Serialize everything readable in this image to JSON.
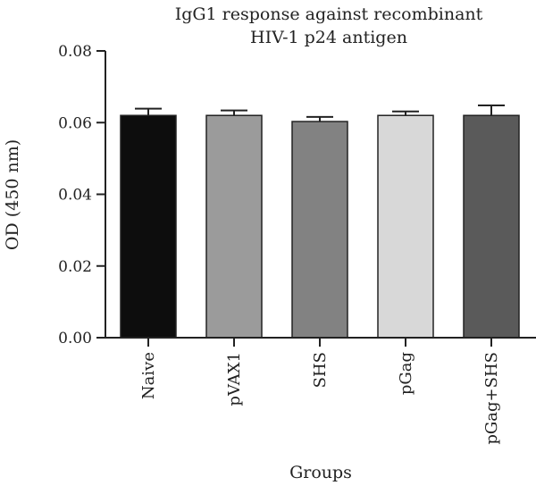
{
  "chart_data": {
    "type": "bar",
    "title_lines": [
      "IgG1 response against recombinant",
      "HIV-1 p24 antigen"
    ],
    "xlabel": "Groups",
    "ylabel": "OD (450 nm)",
    "categories": [
      "Naive",
      "pVAX1",
      "SHS",
      "pGag",
      "pGag+SHS"
    ],
    "values": [
      0.062,
      0.062,
      0.0603,
      0.062,
      0.062
    ],
    "error_upper": [
      0.0019,
      0.0014,
      0.0013,
      0.0011,
      0.0028
    ],
    "bar_colors": [
      "#0d0d0d",
      "#9b9b9b",
      "#828282",
      "#d8d8d8",
      "#5a5a5a"
    ],
    "ylim": [
      0,
      0.08
    ],
    "yticks": [
      "0.00",
      "0.02",
      "0.04",
      "0.06",
      "0.08"
    ],
    "ytick_values": [
      0,
      0.02,
      0.04,
      0.06,
      0.08
    ],
    "grid": false,
    "legend": "none"
  }
}
